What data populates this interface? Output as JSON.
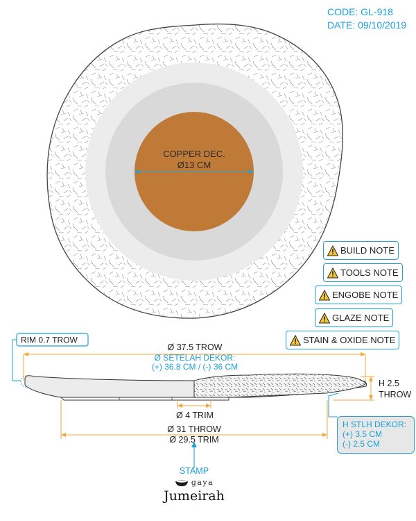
{
  "header": {
    "code": "CODE: GL-918",
    "date": "DATE: 09/10/2019"
  },
  "plate": {
    "decor_label": "COPPER DEC.",
    "decor_diameter": "Ø13 CM",
    "decor_color": "#c07a37",
    "rim_color": "#ececec",
    "well_color": "#d9d9d9"
  },
  "notes": [
    {
      "label": "BUILD NOTE",
      "icon": "warning-icon"
    },
    {
      "label": "TOOLS NOTE",
      "icon": "warning-icon"
    },
    {
      "label": "ENGOBE NOTE",
      "icon": "warning-icon"
    },
    {
      "label": "GLAZE NOTE",
      "icon": "warning-icon"
    },
    {
      "label": "STAIN & OXIDE NOTE",
      "icon": "warning-icon"
    }
  ],
  "profile": {
    "rim": "RIM 0.7 TROW",
    "outer_diameter": "Ø 37.5 TROW",
    "after_decor_title": "Ø SETELAH DEKOR:",
    "after_decor_values": "(+) 36.8 CM / (-) 36 CM",
    "height_line1": "H 2.5",
    "height_line2": "THROW",
    "foot_trim": "Ø 4 TRIM",
    "base_throw": "Ø 31 THROW",
    "base_trim": "Ø 29.5 TRIM",
    "height_after_title": "H STLH DEKOR:",
    "height_after_plus": "(+) 3.5 CM",
    "height_after_minus": "(-) 2.5 CM"
  },
  "stamp": {
    "label": "STAMP",
    "sub_brand": "gaya",
    "brand": "Jumeirah"
  },
  "colors": {
    "accent": "#1da1d8",
    "dimension": "#f5a53a"
  }
}
